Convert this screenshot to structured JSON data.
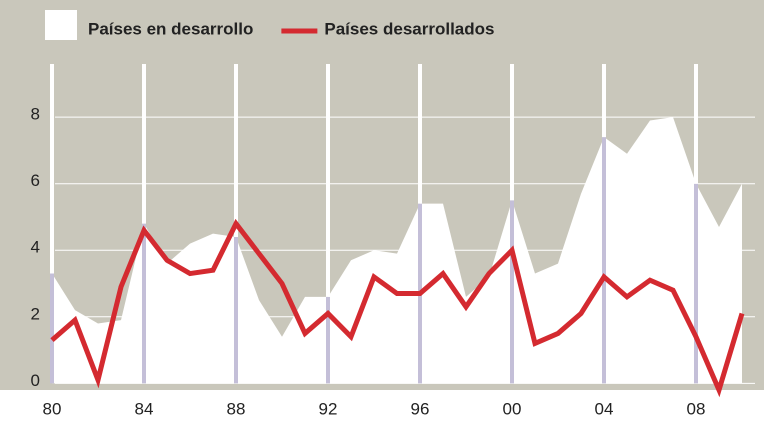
{
  "chart_data": {
    "type": "line",
    "x": [
      "80",
      null,
      null,
      null,
      "84",
      null,
      null,
      null,
      "88",
      null,
      null,
      null,
      "92",
      null,
      null,
      null,
      "96",
      null,
      null,
      null,
      "00",
      null,
      null,
      null,
      "04",
      null,
      null,
      null,
      "08",
      null,
      null
    ],
    "series": [
      {
        "name": "Países en desarrollo",
        "type": "area",
        "color": "#ffffff",
        "values": [
          3.3,
          2.2,
          1.8,
          1.9,
          4.8,
          3.6,
          4.2,
          4.5,
          4.4,
          2.5,
          1.4,
          2.6,
          2.6,
          3.7,
          4.0,
          3.9,
          5.4,
          5.4,
          2.6,
          3.2,
          5.5,
          3.3,
          3.6,
          5.7,
          7.4,
          6.9,
          7.9,
          8.0,
          6.0,
          4.7,
          6.0
        ]
      },
      {
        "name": "Países desarrollados",
        "type": "line",
        "color": "#d42a30",
        "values": [
          1.3,
          1.9,
          0.1,
          2.9,
          4.6,
          3.7,
          3.3,
          3.4,
          4.8,
          3.9,
          3.0,
          1.5,
          2.1,
          1.4,
          3.2,
          2.7,
          2.7,
          3.3,
          2.3,
          3.3,
          4.0,
          1.2,
          1.5,
          2.1,
          3.2,
          2.6,
          3.1,
          2.8,
          1.4,
          -0.2,
          2.1
        ]
      }
    ],
    "ylim": [
      -0.2,
      10.5
    ],
    "yticks": [
      0,
      2,
      4,
      6,
      8
    ],
    "grid": true,
    "background": "#c9c7bb",
    "tick_line_color": "#c4bfd8"
  }
}
